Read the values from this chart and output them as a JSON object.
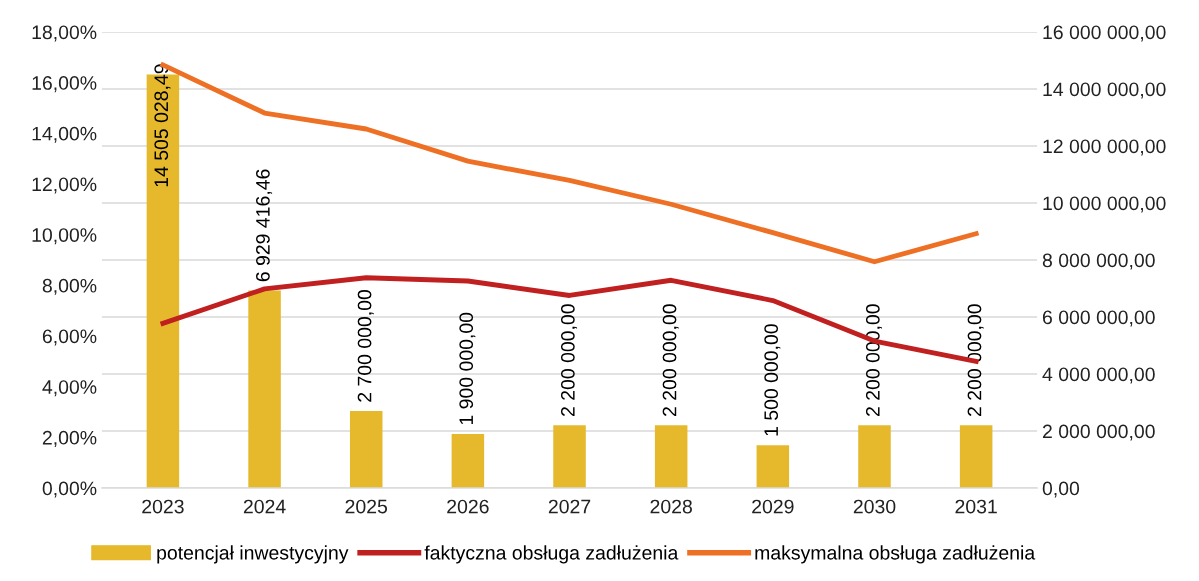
{
  "chart_data": {
    "type": "bar",
    "categories": [
      "2023",
      "2024",
      "2025",
      "2026",
      "2027",
      "2028",
      "2029",
      "2030",
      "2031"
    ],
    "series": [
      {
        "name": "potencjał inwestycyjny",
        "axis": "y2",
        "color": "#e6b92c",
        "values": [
          14505028.49,
          6929416.46,
          2700000,
          1900000,
          2200000,
          2200000,
          1500000,
          2200000,
          2200000
        ],
        "value_labels": [
          "14 505 028,49",
          "6 929 416,46",
          "2 700 000,00",
          "1 900 000,00",
          "2 200 000,00",
          "2 200 000,00",
          "1 500 000,00",
          "2 200 000,00",
          "2 200 000,00"
        ]
      },
      {
        "name": "faktyczna obsługa zadłużenia",
        "type": "line",
        "color": "#c0201f",
        "values": [
          6.5,
          7.86,
          8.3,
          8.17,
          7.6,
          8.2,
          7.4,
          5.8,
          5.0
        ]
      },
      {
        "name": "maksymalna obsługa zadłużenia",
        "type": "line",
        "color": "#ee7024",
        "values": [
          16.7,
          14.8,
          14.17,
          12.9,
          12.14,
          11.2,
          10.08,
          8.93,
          10.04
        ]
      }
    ],
    "ylim": [
      0,
      18
    ],
    "yticks": [
      {
        "value": 0,
        "label": "0,00%"
      },
      {
        "value": 2,
        "label": "2,00%"
      },
      {
        "value": 4,
        "label": "4,00%"
      },
      {
        "value": 6,
        "label": "6,00%"
      },
      {
        "value": 8,
        "label": "8,00%"
      },
      {
        "value": 10,
        "label": "10,00%"
      },
      {
        "value": 12,
        "label": "12,00%"
      },
      {
        "value": 14,
        "label": "14,00%"
      },
      {
        "value": 16,
        "label": "16,00%"
      },
      {
        "value": 18,
        "label": "18,00%"
      }
    ],
    "y2lim": [
      0,
      16000000
    ],
    "y2ticks": [
      {
        "value": 0,
        "label": "0,00"
      },
      {
        "value": 2000000,
        "label": "2 000 000,00"
      },
      {
        "value": 4000000,
        "label": "4 000 000,00"
      },
      {
        "value": 6000000,
        "label": "6 000 000,00"
      },
      {
        "value": 8000000,
        "label": "8 000 000,00"
      },
      {
        "value": 10000000,
        "label": "10 000 000,00"
      },
      {
        "value": 12000000,
        "label": "12 000 000,00"
      },
      {
        "value": 14000000,
        "label": "14 000 000,00"
      },
      {
        "value": 16000000,
        "label": "16 000 000,00"
      }
    ],
    "grid": "y",
    "legend": "bottom",
    "marker": "none",
    "line_style": "solid"
  }
}
